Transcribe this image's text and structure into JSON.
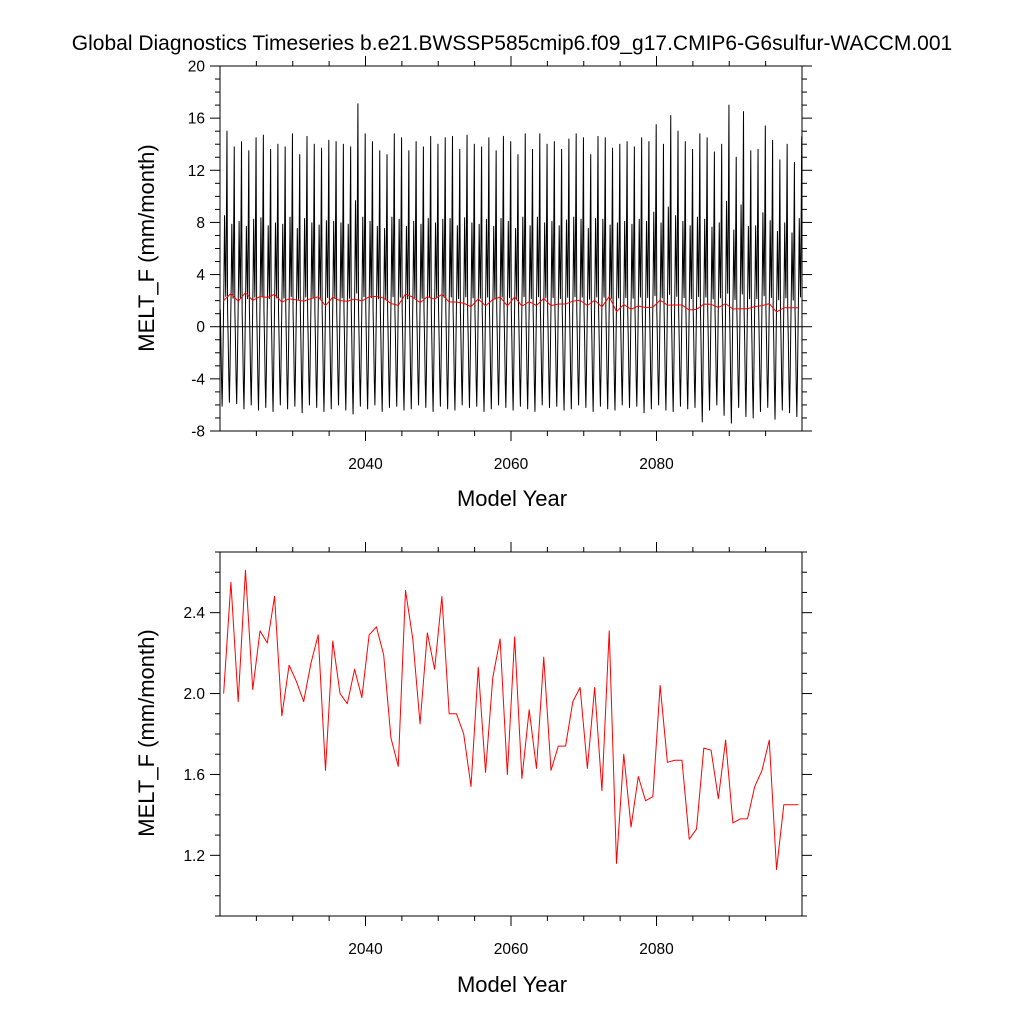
{
  "title": "Global Diagnostics Timeseries b.e21.BWSSP585cmip6.f09_g17.CMIP6-G6sulfur-WACCM.001",
  "colors": {
    "monthly": "#000000",
    "annual": "#ff0000",
    "axis": "#000000",
    "background": "#ffffff"
  },
  "chart_data": [
    {
      "type": "line",
      "xlabel": "Model Year",
      "ylabel": "MELT_F (mm/month)",
      "xlim": [
        2020,
        2100
      ],
      "ylim": [
        -8,
        20
      ],
      "x_ticks": [
        2040,
        2060,
        2080
      ],
      "x_tick_labels": [
        "2040",
        "2060",
        "2080"
      ],
      "y_ticks": [
        -8,
        -4,
        0,
        4,
        8,
        12,
        16,
        20
      ],
      "y_tick_labels": [
        "-8",
        "-4",
        "0",
        "4",
        "8",
        "12",
        "16",
        "20"
      ],
      "reference_line_y": 0,
      "grid": false,
      "series": [
        {
          "color": "#000000",
          "note_values": "monthly values; x in model years (fractional), one point per month 2020.04–2099.96",
          "annual_peaks": [
            15.0,
            13.8,
            14.2,
            13.5,
            14.5,
            14.7,
            13.6,
            14.0,
            13.8,
            14.8,
            13.2,
            14.6,
            14.0,
            13.7,
            14.3,
            14.2,
            14.0,
            13.8,
            17.1,
            14.8,
            14.2,
            13.5,
            13.2,
            14.8,
            14.5,
            13.5,
            14.2,
            13.8,
            14.6,
            14.0,
            14.5,
            14.6,
            13.6,
            14.7,
            14.0,
            13.8,
            14.5,
            13.5,
            14.6,
            14.2,
            13.2,
            14.8,
            13.6,
            14.8,
            14.0,
            14.2,
            13.6,
            14.4,
            14.8,
            14.5,
            13.2,
            14.6,
            14.5,
            13.7,
            14.0,
            14.2,
            13.8,
            14.5,
            14.2,
            15.5,
            14.0,
            16.2,
            15.0,
            14.2,
            13.6,
            14.8,
            14.5,
            13.4,
            14.0,
            17.0,
            13.0,
            16.5,
            13.5,
            13.6,
            15.4,
            14.3,
            12.8,
            14.0,
            12.6,
            14.6
          ],
          "annual_minima": [
            -6.1,
            -5.8,
            -5.9,
            -6.3,
            -6.0,
            -6.4,
            -6.2,
            -6.5,
            -6.0,
            -6.3,
            -6.1,
            -6.6,
            -6.0,
            -6.2,
            -6.5,
            -6.3,
            -6.0,
            -6.4,
            -6.7,
            -6.1,
            -6.3,
            -6.0,
            -6.5,
            -6.2,
            -6.1,
            -6.4,
            -6.3,
            -6.0,
            -6.2,
            -6.5,
            -6.1,
            -6.3,
            -6.4,
            -6.0,
            -6.2,
            -6.1,
            -6.5,
            -6.3,
            -6.0,
            -6.2,
            -6.4,
            -6.1,
            -6.3,
            -6.5,
            -6.0,
            -6.2,
            -6.1,
            -6.4,
            -6.3,
            -6.0,
            -6.2,
            -6.5,
            -6.1,
            -6.3,
            -6.4,
            -6.0,
            -6.2,
            -6.1,
            -6.6,
            -6.3,
            -6.0,
            -6.4,
            -6.5,
            -6.1,
            -6.3,
            -6.2,
            -7.3,
            -6.4,
            -6.0,
            -6.8,
            -7.4,
            -6.2,
            -6.9,
            -7.0,
            -6.5,
            -6.2,
            -7.1,
            -6.4,
            -6.6,
            -6.9
          ]
        },
        {
          "color": "#ff0000",
          "x": [
            2020.5,
            2021.5,
            2022.5,
            2023.5,
            2024.5,
            2025.5,
            2026.5,
            2027.5,
            2028.5,
            2029.5,
            2030.5,
            2031.5,
            2032.5,
            2033.5,
            2034.5,
            2035.5,
            2036.5,
            2037.5,
            2038.5,
            2039.5,
            2040.5,
            2041.5,
            2042.5,
            2043.5,
            2044.5,
            2045.5,
            2046.5,
            2047.5,
            2048.5,
            2049.5,
            2050.5,
            2051.5,
            2052.5,
            2053.5,
            2054.5,
            2055.5,
            2056.5,
            2057.5,
            2058.5,
            2059.5,
            2060.5,
            2061.5,
            2062.5,
            2063.5,
            2064.5,
            2065.5,
            2066.5,
            2067.5,
            2068.5,
            2069.5,
            2070.5,
            2071.5,
            2072.5,
            2073.5,
            2074.5,
            2075.5,
            2076.5,
            2077.5,
            2078.5,
            2079.5,
            2080.5,
            2081.5,
            2082.5,
            2083.5,
            2084.5,
            2085.5,
            2086.5,
            2087.5,
            2088.5,
            2089.5,
            2090.5,
            2091.5,
            2092.5,
            2093.5,
            2094.5,
            2095.5,
            2096.5,
            2097.5,
            2098.5,
            2099.5
          ],
          "values": [
            2.0,
            2.55,
            1.96,
            2.61,
            2.02,
            2.31,
            2.25,
            2.48,
            1.89,
            2.14,
            2.06,
            1.96,
            2.15,
            2.29,
            1.62,
            2.26,
            2.0,
            1.95,
            2.12,
            1.98,
            2.29,
            2.33,
            2.19,
            1.78,
            1.64,
            2.51,
            2.27,
            1.85,
            2.3,
            2.12,
            2.48,
            1.9,
            1.9,
            1.8,
            1.54,
            2.13,
            1.61,
            2.08,
            2.27,
            1.6,
            2.28,
            1.58,
            1.92,
            1.63,
            2.18,
            1.62,
            1.74,
            1.74,
            1.96,
            2.03,
            1.63,
            2.03,
            1.52,
            2.31,
            1.16,
            1.7,
            1.34,
            1.59,
            1.47,
            1.49,
            2.04,
            1.66,
            1.67,
            1.67,
            1.28,
            1.33,
            1.73,
            1.72,
            1.48,
            1.77,
            1.36,
            1.38,
            1.38,
            1.54,
            1.62,
            1.77,
            1.13,
            1.45,
            1.45,
            1.45
          ]
        }
      ]
    },
    {
      "type": "line",
      "xlabel": "Model Year",
      "ylabel": "MELT_F (mm/month)",
      "xlim": [
        2020,
        2100
      ],
      "ylim": [
        0.9,
        2.7
      ],
      "x_ticks": [
        2040,
        2060,
        2080
      ],
      "x_tick_labels": [
        "2040",
        "2060",
        "2080"
      ],
      "y_ticks": [
        1.2,
        1.6,
        2.0,
        2.4
      ],
      "y_tick_labels": [
        "1.2",
        "1.6",
        "2.0",
        "2.4"
      ],
      "grid": false,
      "series": [
        {
          "color": "#ff0000",
          "x": [
            2020.5,
            2021.5,
            2022.5,
            2023.5,
            2024.5,
            2025.5,
            2026.5,
            2027.5,
            2028.5,
            2029.5,
            2030.5,
            2031.5,
            2032.5,
            2033.5,
            2034.5,
            2035.5,
            2036.5,
            2037.5,
            2038.5,
            2039.5,
            2040.5,
            2041.5,
            2042.5,
            2043.5,
            2044.5,
            2045.5,
            2046.5,
            2047.5,
            2048.5,
            2049.5,
            2050.5,
            2051.5,
            2052.5,
            2053.5,
            2054.5,
            2055.5,
            2056.5,
            2057.5,
            2058.5,
            2059.5,
            2060.5,
            2061.5,
            2062.5,
            2063.5,
            2064.5,
            2065.5,
            2066.5,
            2067.5,
            2068.5,
            2069.5,
            2070.5,
            2071.5,
            2072.5,
            2073.5,
            2074.5,
            2075.5,
            2076.5,
            2077.5,
            2078.5,
            2079.5,
            2080.5,
            2081.5,
            2082.5,
            2083.5,
            2084.5,
            2085.5,
            2086.5,
            2087.5,
            2088.5,
            2089.5,
            2090.5,
            2091.5,
            2092.5,
            2093.5,
            2094.5,
            2095.5,
            2096.5,
            2097.5,
            2098.5,
            2099.5
          ],
          "values": [
            2.0,
            2.55,
            1.96,
            2.61,
            2.02,
            2.31,
            2.25,
            2.48,
            1.89,
            2.14,
            2.06,
            1.96,
            2.15,
            2.29,
            1.62,
            2.26,
            2.0,
            1.95,
            2.12,
            1.98,
            2.29,
            2.33,
            2.19,
            1.78,
            1.64,
            2.51,
            2.27,
            1.85,
            2.3,
            2.12,
            2.48,
            1.9,
            1.9,
            1.8,
            1.54,
            2.13,
            1.61,
            2.08,
            2.27,
            1.6,
            2.28,
            1.58,
            1.92,
            1.63,
            2.18,
            1.62,
            1.74,
            1.74,
            1.96,
            2.03,
            1.63,
            2.03,
            1.52,
            2.31,
            1.16,
            1.7,
            1.34,
            1.59,
            1.47,
            1.49,
            2.04,
            1.66,
            1.67,
            1.67,
            1.28,
            1.33,
            1.73,
            1.72,
            1.48,
            1.77,
            1.36,
            1.38,
            1.38,
            1.54,
            1.62,
            1.77,
            1.13,
            1.45,
            1.45,
            1.45
          ]
        }
      ]
    }
  ]
}
